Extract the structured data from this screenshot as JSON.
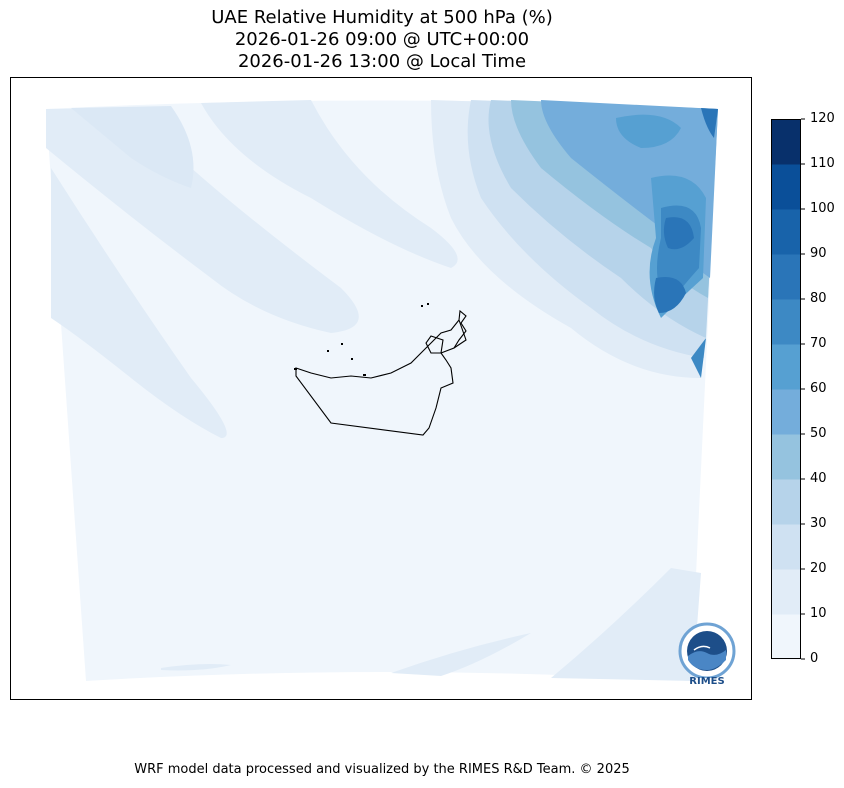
{
  "title": {
    "line1": "UAE Relative Humidity at 500 hPa (%)",
    "line2": "2026-01-26 09:00 @ UTC+00:00",
    "line3": "2026-01-26 13:00 @ Local Time"
  },
  "colorbar": {
    "ticks": [
      "0",
      "10",
      "20",
      "30",
      "40",
      "50",
      "60",
      "70",
      "80",
      "90",
      "100",
      "110",
      "120"
    ],
    "colors": [
      "#f0f6fc",
      "#e1ecf7",
      "#cfe1f2",
      "#b6d3ea",
      "#95c3df",
      "#74addb",
      "#56a0d2",
      "#3d89c4",
      "#2a75b8",
      "#1863aa",
      "#0a4f99",
      "#08306b"
    ]
  },
  "logo": {
    "text": "RIMES"
  },
  "footer": {
    "text": "WRF model data processed and visualized by the RIMES R&D Team. © 2025"
  },
  "colors": {
    "land_base": "#f0f6fc",
    "border": "#000000"
  }
}
